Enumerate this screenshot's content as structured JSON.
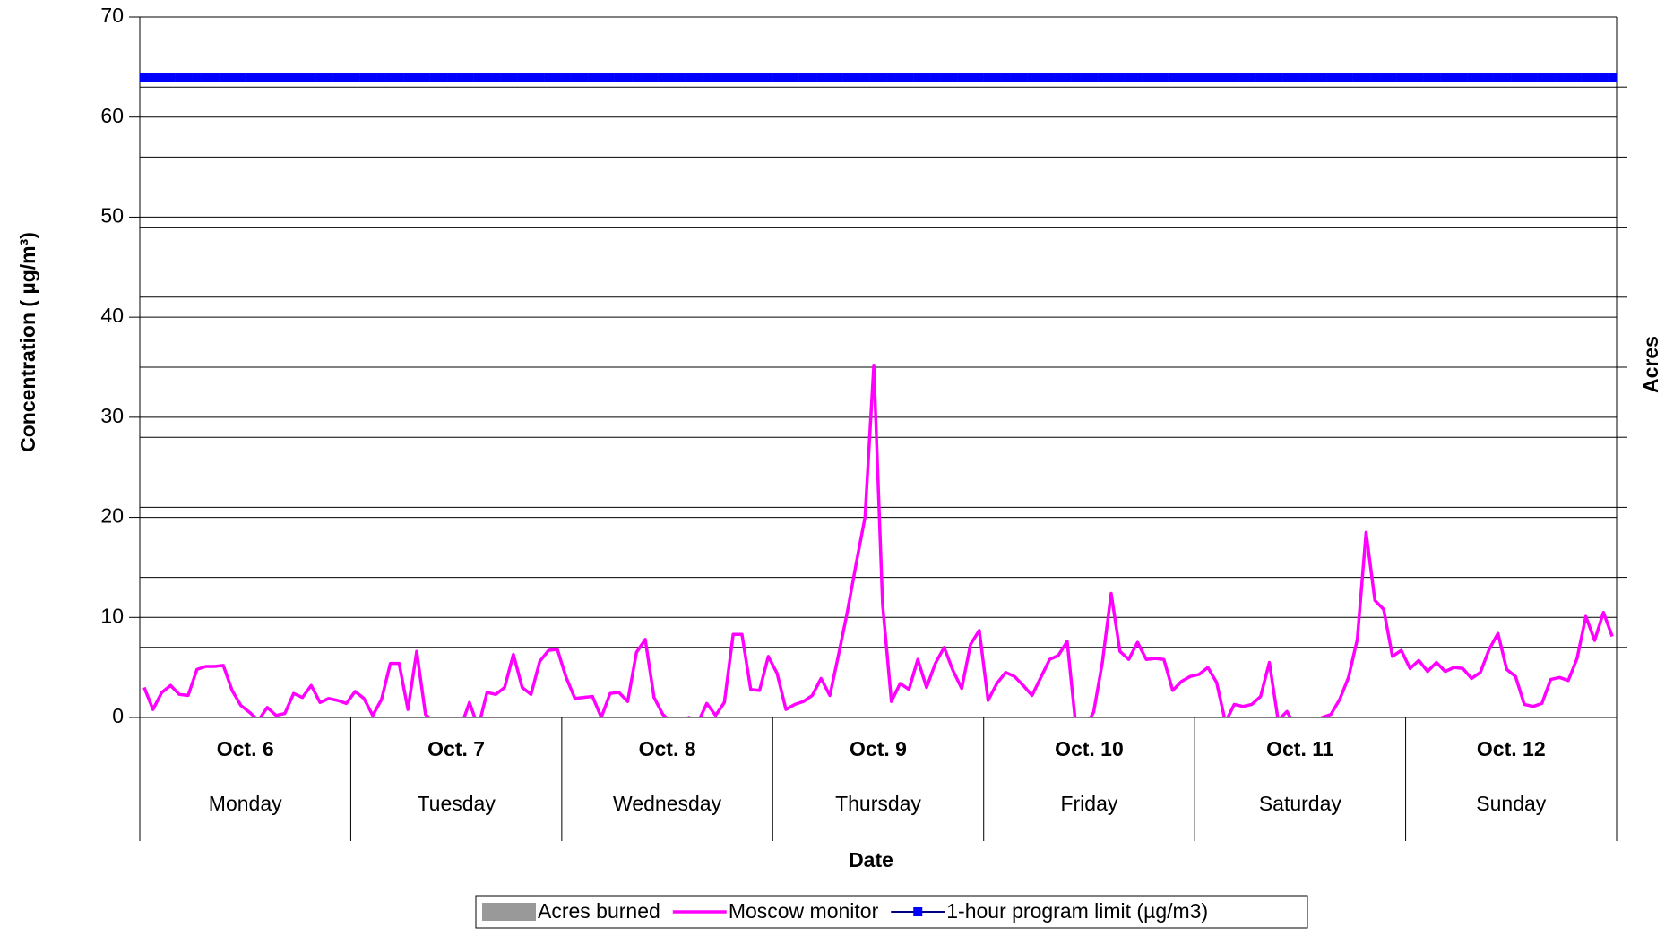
{
  "chart_data": {
    "type": "line",
    "xlabel": "Date",
    "ylabel": "Concentration ( µg/m³)",
    "y2label": "Acres",
    "groups": [
      {
        "date": "Oct. 6",
        "day": "Monday"
      },
      {
        "date": "Oct. 7",
        "day": "Tuesday"
      },
      {
        "date": "Oct. 8",
        "day": "Wednesday"
      },
      {
        "date": "Oct. 9",
        "day": "Thursday"
      },
      {
        "date": "Oct. 10",
        "day": "Friday"
      },
      {
        "date": "Oct. 11",
        "day": "Saturday"
      },
      {
        "date": "Oct. 12",
        "day": "Sunday"
      }
    ],
    "points_per_group": 24,
    "ylim": [
      0,
      70
    ],
    "yticks": [
      0,
      10,
      20,
      30,
      40,
      50,
      60,
      70
    ],
    "y2lim": [
      0,
      10
    ],
    "y2ticks": [
      1,
      2,
      3,
      4,
      5,
      6,
      7,
      8,
      9
    ],
    "grid": true,
    "legend": "bottom",
    "series": [
      {
        "name": "Acres burned",
        "color": "#999999",
        "axis": "y2",
        "kind": "bar"
      },
      {
        "name": "Moscow monitor",
        "color": "#ff00ff",
        "kind": "line",
        "values": [
          3,
          0.8,
          2.5,
          3.2,
          2.3,
          2.2,
          4.8,
          5.1,
          5.1,
          5.2,
          2.7,
          1.2,
          0.5,
          -0.3,
          1.0,
          0.2,
          0.4,
          2.4,
          2.0,
          3.2,
          1.5,
          1.9,
          1.7,
          1.4,
          2.6,
          1.9,
          0.2,
          1.8,
          5.4,
          5.4,
          0.8,
          6.6,
          0.3,
          -0.5,
          -1,
          -1,
          -1,
          1.5,
          -1,
          2.5,
          2.3,
          3.0,
          6.3,
          3.0,
          2.3,
          5.6,
          6.7,
          6.8,
          4.0,
          1.9,
          2.0,
          2.1,
          0.0,
          2.4,
          2.5,
          1.6,
          6.5,
          7.8,
          2.0,
          0.3,
          -0.5,
          -0.3,
          0.0,
          -0.5,
          1.4,
          0.2,
          1.5,
          8.3,
          8.3,
          2.8,
          2.7,
          6.1,
          4.4,
          0.8,
          1.3,
          1.6,
          2.2,
          3.9,
          2.2,
          6.3,
          10.6,
          15.4,
          20,
          35.2,
          11.3,
          1.6,
          3.4,
          2.8,
          5.8,
          3.0,
          5.4,
          7.0,
          4.7,
          2.9,
          7.3,
          8.7,
          1.7,
          3.4,
          4.5,
          4.1,
          3.2,
          2.2,
          4.0,
          5.8,
          6.2,
          7.6,
          -1,
          -1,
          0.5,
          5.5,
          12.4,
          6.6,
          5.8,
          7.5,
          5.8,
          5.9,
          5.8,
          2.7,
          3.6,
          4.1,
          4.3,
          5.0,
          3.5,
          -0.5,
          1.3,
          1.1,
          1.3,
          2.1,
          5.5,
          -0.3,
          0.6,
          -1,
          -1,
          -0.5,
          0.0,
          0.3,
          1.8,
          4.0,
          7.8,
          18.5,
          11.7,
          10.8,
          6.1,
          6.7,
          4.9,
          5.7,
          4.6,
          5.5,
          4.6,
          5.0,
          4.9,
          3.9,
          4.5,
          6.8,
          8.4,
          4.8,
          4.1,
          1.3,
          1.1,
          1.4,
          3.8,
          4.0,
          3.7,
          5.9,
          10.1,
          7.7,
          10.5,
          8.1
        ]
      },
      {
        "name": "1-hour program limit (µg/m3)",
        "color": "#0000ff",
        "kind": "line-marker",
        "values": [
          64,
          64,
          64,
          64,
          64,
          64,
          64,
          64,
          64,
          64,
          64,
          64,
          64,
          64,
          64,
          64,
          64,
          64,
          64,
          64,
          64,
          64,
          64,
          64,
          64,
          64,
          64,
          64,
          64,
          64,
          64,
          64,
          64,
          64,
          64,
          64,
          64,
          64,
          64,
          64,
          64,
          64,
          64,
          64,
          64,
          64,
          64,
          64,
          64,
          64,
          64,
          64,
          64,
          64,
          64,
          64,
          64,
          64,
          64,
          64,
          64,
          64,
          64,
          64,
          64,
          64,
          64,
          64,
          64,
          64,
          64,
          64,
          64,
          64,
          64,
          64,
          64,
          64,
          64,
          64,
          64,
          64,
          64,
          64,
          64,
          64,
          64,
          64,
          64,
          64,
          64,
          64,
          64,
          64,
          64,
          64,
          64,
          64,
          64,
          64,
          64,
          64,
          64,
          64,
          64,
          64,
          64,
          64,
          64,
          64,
          64,
          64,
          64,
          64,
          64,
          64,
          64,
          64,
          64,
          64,
          64,
          64,
          64,
          64,
          64,
          64,
          64,
          64,
          64,
          64,
          64,
          64,
          64,
          64,
          64,
          64,
          64,
          64,
          64,
          64,
          64,
          64,
          64,
          64,
          64,
          64,
          64,
          64,
          64,
          64,
          64,
          64,
          64,
          64,
          64,
          64,
          64,
          64,
          64,
          64,
          64,
          64,
          64,
          64,
          64,
          64,
          64,
          64
        ]
      }
    ]
  }
}
